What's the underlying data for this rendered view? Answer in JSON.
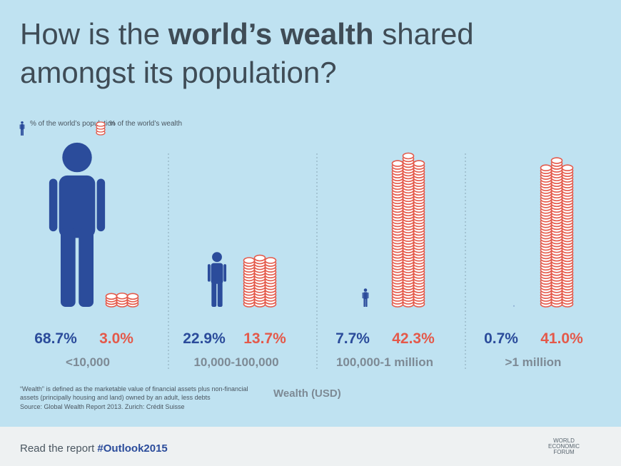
{
  "chart_data": {
    "type": "pictogram",
    "title": [
      "How is the ",
      "world’s wealth",
      " shared",
      "amongst its population?"
    ],
    "categories": [
      "<10,000",
      "10,000-100,000",
      "100,000-1 million",
      ">1 million"
    ],
    "series": [
      {
        "name": "% of the world’s population",
        "color": "#2b4c9b",
        "values": [
          68.7,
          22.9,
          7.7,
          0.7
        ],
        "value_labels": [
          "68.7%",
          "22.9%",
          "7.7%",
          "0.7%"
        ]
      },
      {
        "name": "% of the world’s wealth",
        "color": "#e4594a",
        "values": [
          3.0,
          13.7,
          42.3,
          41.0
        ],
        "value_labels": [
          "3.0%",
          "13.7%",
          "42.3%",
          "41.0%"
        ]
      }
    ],
    "xlabel": "Wealth (USD)",
    "notes": [
      "“Wealth” is defined as the marketable value of financial assets plus non-financial",
      "assets (principally housing and land) owned by an adult, less debts",
      "Source: Global Wealth Report 2013. Zurich: Crédit Suisse"
    ],
    "footer": {
      "text": "Read the report ",
      "link": "#Outlook2015",
      "logo": [
        "WORLD",
        "ECONOMIC",
        "FORUM"
      ]
    }
  }
}
